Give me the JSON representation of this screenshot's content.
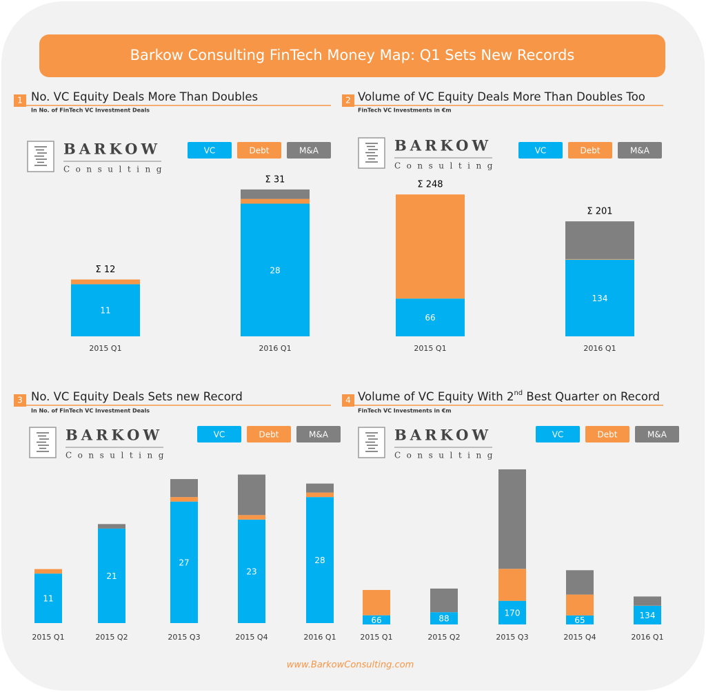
{
  "header": {
    "title": "Barkow Consulting FinTech Money Map: Q1 Sets New Records"
  },
  "logo": {
    "name": "BARKOW",
    "sub": "Consulting"
  },
  "footer": {
    "url": "www.BarkowConsulting.com"
  },
  "chart_data": [
    {
      "type": "bar",
      "stacked": true,
      "badge": "1",
      "title": [
        "No. VC Equity Deals More Than Doubles"
      ],
      "subtitle": "In No. of FinTech VC Investment Deals",
      "categories": [
        "2015 Q1",
        "2016 Q1"
      ],
      "series": [
        {
          "name": "VC",
          "color": "#00b0f0",
          "values": [
            11,
            28
          ]
        },
        {
          "name": "Debt",
          "color": "#f79646",
          "values": [
            1,
            1
          ]
        },
        {
          "name": "M&A",
          "color": "#808080",
          "values": [
            0,
            2
          ]
        }
      ],
      "totals": {
        "values": [
          12,
          31
        ],
        "value_labels": [
          "Σ 12",
          "Σ 31"
        ]
      },
      "ylim": [
        0,
        32
      ]
    },
    {
      "type": "bar",
      "stacked": true,
      "badge": "2",
      "title": [
        "Volume of VC Equity Deals More Than Doubles Too"
      ],
      "subtitle": "FinTech VC Investments in €m",
      "categories": [
        "2015 Q1",
        "2016 Q1"
      ],
      "series": [
        {
          "name": "VC",
          "color": "#00b0f0",
          "values": [
            66,
            134
          ]
        },
        {
          "name": "Debt",
          "color": "#f79646",
          "values": [
            182,
            1
          ]
        },
        {
          "name": "M&A",
          "color": "#808080",
          "values": [
            0,
            66
          ]
        }
      ],
      "totals": {
        "values": [
          248,
          201
        ],
        "value_labels": [
          "Σ 248",
          "Σ 201"
        ]
      },
      "ylim": [
        0,
        265
      ]
    },
    {
      "type": "bar",
      "stacked": true,
      "badge": "3",
      "title": [
        "No. VC Equity Deals Sets new Record"
      ],
      "subtitle": "In No. of FinTech VC Investment Deals",
      "categories": [
        "2015 Q1",
        "2015 Q2",
        "2015 Q3",
        "2015 Q4",
        "2016 Q1"
      ],
      "series": [
        {
          "name": "VC",
          "color": "#00b0f0",
          "values": [
            11,
            21,
            27,
            23,
            28
          ]
        },
        {
          "name": "Debt",
          "color": "#f79646",
          "values": [
            1,
            0,
            1,
            1,
            1
          ]
        },
        {
          "name": "M&A",
          "color": "#808080",
          "values": [
            0,
            1,
            4,
            9,
            2
          ]
        }
      ],
      "ylim": [
        0,
        34
      ]
    },
    {
      "type": "bar",
      "stacked": true,
      "badge": "4",
      "title": [
        "Volume of VC Equity With 2",
        "nd",
        " Best Quarter on Record"
      ],
      "subtitle": "FinTech VC Investments in €m",
      "categories": [
        "2015 Q1",
        "2015 Q2",
        "2015 Q3",
        "2015 Q4",
        "2016 Q1"
      ],
      "series": [
        {
          "name": "VC",
          "color": "#00b0f0",
          "values": [
            66,
            88,
            170,
            65,
            134
          ]
        },
        {
          "name": "Debt",
          "color": "#f79646",
          "values": [
            182,
            0,
            230,
            150,
            1
          ]
        },
        {
          "name": "M&A",
          "color": "#808080",
          "values": [
            0,
            170,
            715,
            175,
            66
          ]
        }
      ],
      "ylim": [
        0,
        1100
      ]
    }
  ]
}
